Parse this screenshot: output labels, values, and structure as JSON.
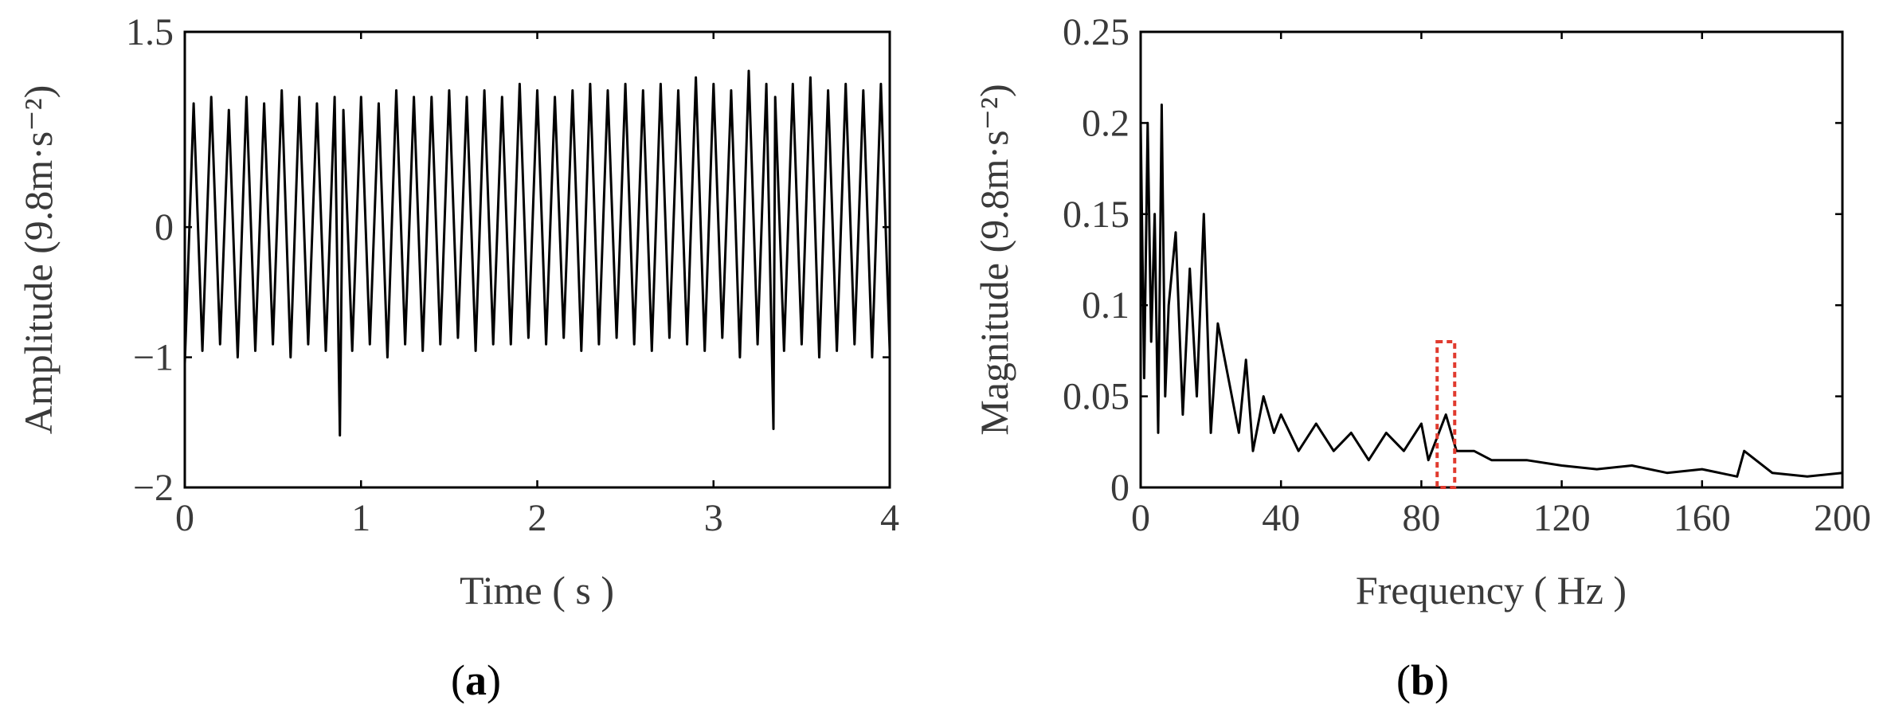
{
  "chart_data": [
    {
      "id": "a",
      "type": "line",
      "panel_label": "a",
      "xlabel": "Time ( s )",
      "ylabel": "Amplitude (9.8m·s⁻²)",
      "xlim": [
        0,
        4
      ],
      "ylim": [
        -2,
        1.5
      ],
      "xticks": [
        0,
        1,
        2,
        3,
        4
      ],
      "xtick_labels": [
        "0",
        "1",
        "2",
        "3",
        "4"
      ],
      "yticks": [
        1.5,
        0,
        -1,
        -2
      ],
      "ytick_labels": [
        "1.5",
        "0",
        "−1",
        "−2"
      ],
      "grid": false,
      "series": [
        {
          "color": "#000000",
          "description_values": {
            "x": [
              0.0,
              0.05,
              0.1,
              0.15,
              0.2,
              0.25,
              0.3,
              0.35,
              0.4,
              0.45,
              0.5,
              0.55,
              0.6,
              0.65,
              0.7,
              0.75,
              0.8,
              0.85,
              0.88,
              0.9,
              0.95,
              1.0,
              1.05,
              1.1,
              1.15,
              1.2,
              1.25,
              1.3,
              1.35,
              1.4,
              1.45,
              1.5,
              1.55,
              1.6,
              1.65,
              1.7,
              1.75,
              1.8,
              1.85,
              1.9,
              1.95,
              2.0,
              2.05,
              2.1,
              2.15,
              2.2,
              2.25,
              2.3,
              2.35,
              2.4,
              2.45,
              2.5,
              2.55,
              2.6,
              2.65,
              2.7,
              2.75,
              2.8,
              2.85,
              2.9,
              2.95,
              3.0,
              3.05,
              3.1,
              3.15,
              3.2,
              3.25,
              3.3,
              3.34,
              3.35,
              3.4,
              3.45,
              3.5,
              3.55,
              3.6,
              3.65,
              3.7,
              3.75,
              3.8,
              3.85,
              3.9,
              3.95,
              4.0
            ],
            "y": [
              -1.05,
              0.95,
              -0.95,
              1.0,
              -0.9,
              0.9,
              -1.0,
              1.0,
              -0.95,
              0.95,
              -0.9,
              1.05,
              -1.0,
              1.0,
              -0.9,
              0.95,
              -0.95,
              1.0,
              -1.6,
              0.9,
              -0.95,
              1.0,
              -0.9,
              0.95,
              -1.0,
              1.05,
              -0.9,
              1.0,
              -0.95,
              1.0,
              -0.9,
              1.05,
              -0.85,
              1.0,
              -0.95,
              1.05,
              -0.9,
              1.0,
              -0.9,
              1.1,
              -0.85,
              1.05,
              -0.9,
              1.0,
              -0.85,
              1.05,
              -0.95,
              1.1,
              -0.9,
              1.05,
              -0.85,
              1.1,
              -0.9,
              1.05,
              -0.95,
              1.1,
              -0.85,
              1.05,
              -0.9,
              1.15,
              -0.95,
              1.1,
              -0.85,
              1.05,
              -1.0,
              1.2,
              -0.9,
              1.1,
              -1.55,
              1.0,
              -0.95,
              1.1,
              -0.9,
              1.15,
              -1.0,
              1.05,
              -0.95,
              1.1,
              -0.9,
              1.05,
              -1.0,
              1.1,
              -0.95
            ]
          }
        }
      ]
    },
    {
      "id": "b",
      "type": "line",
      "panel_label": "b",
      "xlabel": "Frequency ( Hz )",
      "ylabel": "Magnitude (9.8m·s⁻²)",
      "xlim": [
        0,
        200
      ],
      "ylim": [
        0,
        0.25
      ],
      "xticks": [
        0,
        40,
        80,
        120,
        160,
        200
      ],
      "xtick_labels": [
        "0",
        "40",
        "80",
        "120",
        "160",
        "200"
      ],
      "yticks": [
        0.25,
        0.2,
        0.15,
        0.1,
        0.05,
        0
      ],
      "ytick_labels": [
        "0.25",
        "0.2",
        "0.15",
        "0.1",
        "0.05",
        "0"
      ],
      "grid": false,
      "highlight_x": [
        84.5,
        89.5
      ],
      "highlight_y": [
        0,
        0.08
      ],
      "highlight_color": "#e03a2e",
      "series": [
        {
          "color": "#000000",
          "description_values": {
            "x": [
              0,
              1,
              2,
              3,
              4,
              5,
              6,
              7,
              8,
              10,
              12,
              14,
              16,
              18,
              20,
              22,
              25,
              28,
              30,
              32,
              35,
              38,
              40,
              45,
              50,
              55,
              60,
              65,
              70,
              75,
              80,
              82,
              85,
              87,
              90,
              95,
              100,
              110,
              120,
              130,
              140,
              150,
              160,
              170,
              172,
              180,
              190,
              200
            ],
            "y": [
              0.2,
              0.06,
              0.2,
              0.08,
              0.15,
              0.03,
              0.21,
              0.05,
              0.1,
              0.14,
              0.04,
              0.12,
              0.05,
              0.15,
              0.03,
              0.09,
              0.06,
              0.03,
              0.07,
              0.02,
              0.05,
              0.03,
              0.04,
              0.02,
              0.035,
              0.02,
              0.03,
              0.015,
              0.03,
              0.02,
              0.035,
              0.015,
              0.03,
              0.04,
              0.02,
              0.02,
              0.015,
              0.015,
              0.012,
              0.01,
              0.012,
              0.008,
              0.01,
              0.006,
              0.02,
              0.008,
              0.006,
              0.008
            ]
          }
        }
      ]
    }
  ]
}
